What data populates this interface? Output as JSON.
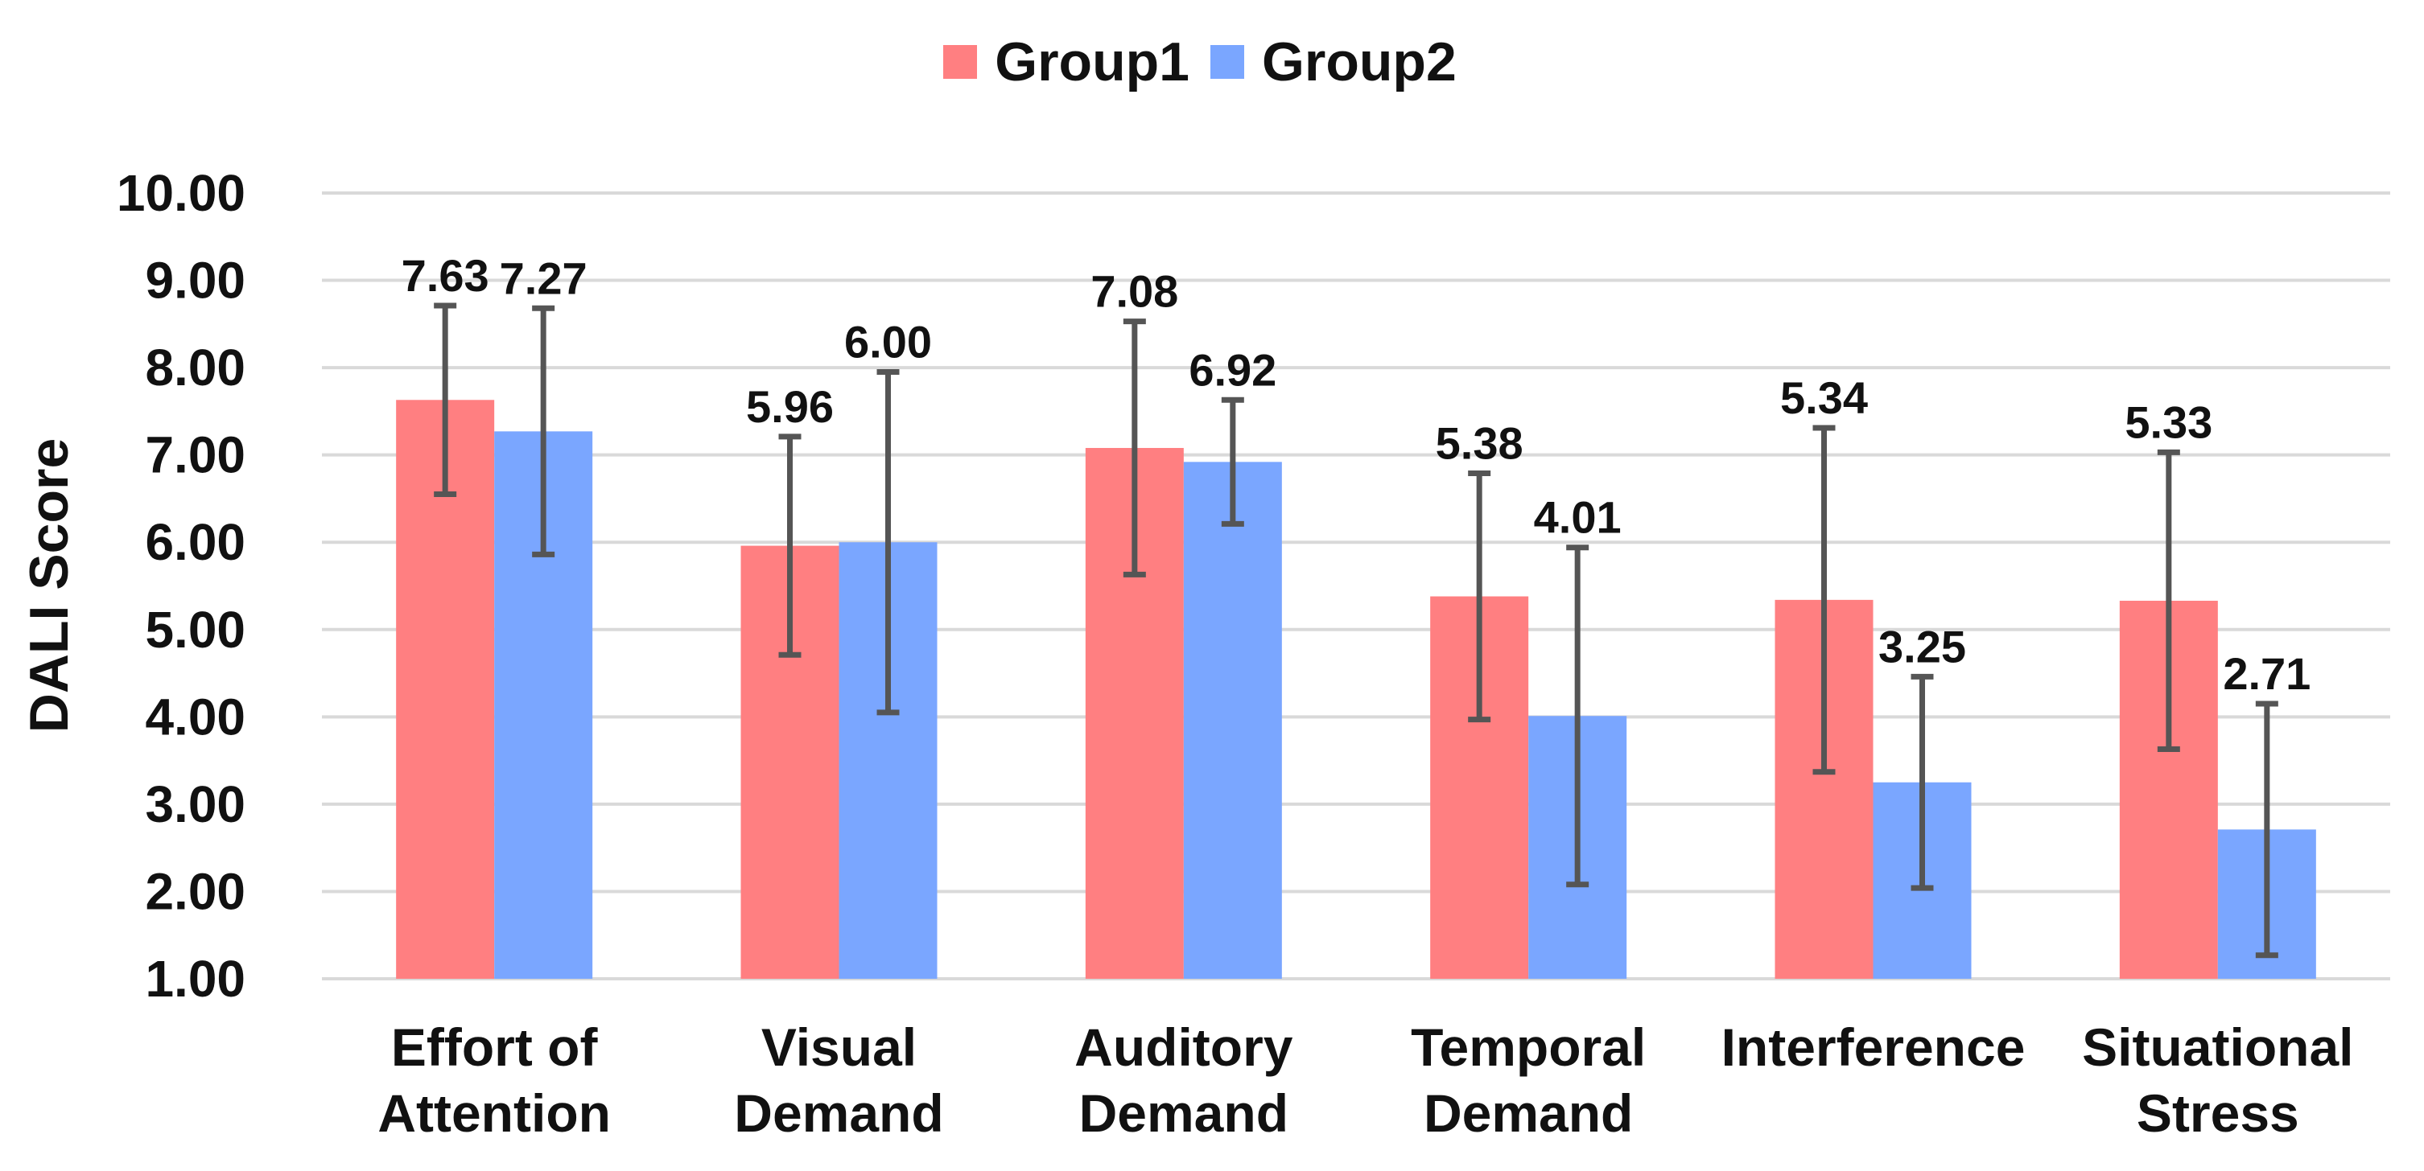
{
  "chart_data": {
    "type": "bar",
    "title": "",
    "xlabel": "",
    "ylabel": "DALI Score",
    "ylim": [
      1,
      10
    ],
    "yticks": [
      1,
      2,
      3,
      4,
      5,
      6,
      7,
      8,
      9,
      10
    ],
    "ytick_labels": [
      "1.00",
      "2.00",
      "3.00",
      "4.00",
      "5.00",
      "6.00",
      "7.00",
      "8.00",
      "9.00",
      "10.00"
    ],
    "grid": true,
    "legend_position": "top-center",
    "categories": [
      [
        "Effort of",
        "Attention"
      ],
      [
        "Visual",
        "Demand"
      ],
      [
        "Auditory",
        "Demand"
      ],
      [
        "Temporal",
        "Demand"
      ],
      [
        "Interference"
      ],
      [
        "Situational",
        "Stress"
      ]
    ],
    "series": [
      {
        "name": "Group1",
        "color": "#ff7f81",
        "values": [
          7.63,
          5.96,
          7.08,
          5.38,
          5.34,
          5.33
        ],
        "labels": [
          "7.63",
          "5.96",
          "7.08",
          "5.38",
          "5.34",
          "5.33"
        ],
        "error": [
          1.08,
          1.25,
          1.45,
          1.41,
          1.97,
          1.7
        ]
      },
      {
        "name": "Group2",
        "color": "#7aa6ff",
        "values": [
          7.27,
          6.0,
          6.92,
          4.01,
          3.25,
          2.71
        ],
        "labels": [
          "7.27",
          "6.00",
          "6.92",
          "4.01",
          "3.25",
          "2.71"
        ],
        "error": [
          1.41,
          1.95,
          0.71,
          1.93,
          1.21,
          1.44
        ]
      }
    ]
  }
}
